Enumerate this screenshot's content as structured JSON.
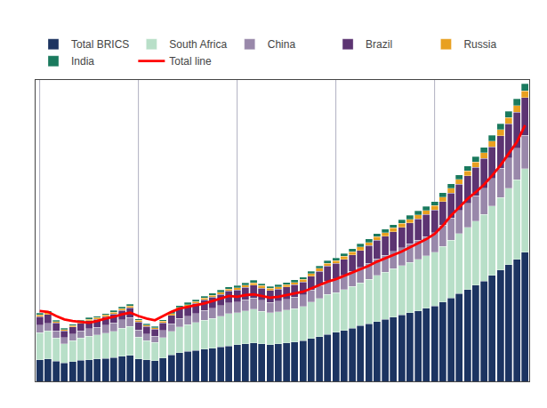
{
  "chart_data": {
    "type": "bar",
    "stacked": true,
    "categories": [
      null,
      null,
      null,
      null,
      null,
      null,
      null,
      null,
      null,
      null,
      null,
      null,
      null,
      null,
      null,
      null,
      null,
      null,
      null,
      null,
      null,
      null,
      null,
      null,
      null,
      null,
      null,
      null,
      null,
      null,
      null,
      null,
      null,
      null,
      null,
      null,
      null,
      null,
      null,
      null,
      null,
      null,
      null,
      null,
      null,
      null,
      null,
      null,
      null,
      null,
      null,
      null,
      null,
      null,
      null,
      null,
      null,
      null,
      null,
      null
    ],
    "series": [
      {
        "name": "Total BRICS",
        "type": "bar",
        "color": "#1c3461",
        "values": [
          130,
          135,
          120,
          110,
          118,
          125,
          130,
          133,
          138,
          143,
          150,
          155,
          135,
          128,
          124,
          140,
          158,
          172,
          178,
          185,
          192,
          198,
          205,
          212,
          218,
          224,
          230,
          224,
          220,
          224,
          230,
          236,
          242,
          255,
          268,
          281,
          293,
          305,
          318,
          332,
          344,
          358,
          370,
          384,
          396,
          410,
          422,
          436,
          450,
          474,
          498,
          524,
          548,
          574,
          600,
          632,
          664,
          698,
          730,
          770
        ]
      },
      {
        "name": "South Africa",
        "type": "bar",
        "color": "#b8dfc8",
        "values": [
          160,
          166,
          140,
          115,
          125,
          134,
          140,
          144,
          150,
          157,
          166,
          173,
          128,
          115,
          109,
          122,
          140,
          154,
          160,
          166,
          173,
          179,
          185,
          192,
          192,
          198,
          202,
          195,
          189,
          192,
          195,
          199,
          205,
          218,
          227,
          237,
          237,
          243,
          250,
          256,
          265,
          275,
          282,
          288,
          295,
          301,
          307,
          314,
          320,
          333,
          346,
          358,
          372,
          384,
          397,
          416,
          435,
          455,
          474,
          500
        ]
      },
      {
        "name": "China",
        "type": "bar",
        "color": "#9988aa",
        "values": [
          45,
          46,
          42,
          37,
          40,
          42,
          44,
          45,
          47,
          49,
          51,
          53,
          44,
          40,
          37,
          42,
          46,
          50,
          52,
          55,
          58,
          60,
          62,
          64,
          64,
          65,
          67,
          65,
          63,
          64,
          65,
          67,
          69,
          73,
          77,
          81,
          82,
          85,
          88,
          92,
          95,
          98,
          101,
          104,
          108,
          110,
          113,
          115,
          118,
          125,
          131,
          138,
          144,
          150,
          157,
          165,
          173,
          181,
          189,
          199
        ]
      },
      {
        "name": "Brazil",
        "type": "bar",
        "color": "#5c3472",
        "values": [
          52,
          53,
          46,
          40,
          43,
          46,
          48,
          49,
          51,
          54,
          56,
          58,
          48,
          44,
          41,
          46,
          51,
          55,
          58,
          60,
          63,
          65,
          68,
          71,
          72,
          74,
          76,
          73,
          70,
          72,
          74,
          76,
          78,
          82,
          86,
          90,
          92,
          96,
          99,
          103,
          107,
          111,
          114,
          118,
          122,
          125,
          128,
          132,
          136,
          143,
          150,
          157,
          164,
          171,
          178,
          187,
          196,
          205,
          214,
          225
        ]
      },
      {
        "name": "Russia",
        "type": "bar",
        "color": "#e8a020",
        "values": [
          10,
          10,
          9,
          8,
          8,
          9,
          9,
          9,
          10,
          10,
          11,
          11,
          9,
          8,
          8,
          9,
          10,
          11,
          11,
          11,
          12,
          12,
          13,
          13,
          13,
          14,
          14,
          14,
          13,
          13,
          14,
          14,
          15,
          15,
          17,
          17,
          17,
          18,
          19,
          19,
          20,
          21,
          21,
          22,
          22,
          23,
          24,
          24,
          25,
          26,
          28,
          29,
          30,
          31,
          33,
          35,
          36,
          38,
          40,
          42
        ]
      },
      {
        "name": "India",
        "type": "bar",
        "color": "#1a7a5e",
        "values": [
          10,
          10,
          9,
          8,
          8,
          8,
          9,
          9,
          10,
          10,
          10,
          11,
          9,
          8,
          8,
          8,
          10,
          10,
          11,
          11,
          11,
          12,
          12,
          13,
          13,
          13,
          14,
          13,
          13,
          13,
          13,
          14,
          14,
          15,
          15,
          16,
          17,
          17,
          18,
          19,
          19,
          20,
          20,
          21,
          22,
          22,
          23,
          24,
          24,
          26,
          27,
          28,
          29,
          31,
          32,
          34,
          35,
          37,
          39,
          41
        ]
      },
      {
        "name": "Total line",
        "type": "line",
        "color": "#ff0000",
        "values": [
          420,
          415,
          390,
          370,
          360,
          355,
          350,
          360,
          375,
          385,
          400,
          410,
          390,
          375,
          365,
          390,
          415,
          435,
          445,
          455,
          465,
          480,
          495,
          510,
          505,
          515,
          520,
          510,
          500,
          505,
          515,
          525,
          535,
          555,
          575,
          595,
          610,
          630,
          650,
          670,
          690,
          715,
          735,
          755,
          775,
          800,
          825,
          850,
          880,
          930,
          990,
          1040,
          1090,
          1130,
          1175,
          1230,
          1290,
          1360,
          1430,
          1530
        ]
      }
    ],
    "ylim": [
      0,
      1800
    ],
    "tick_labels": false,
    "grid": true,
    "legend": "upper left"
  }
}
